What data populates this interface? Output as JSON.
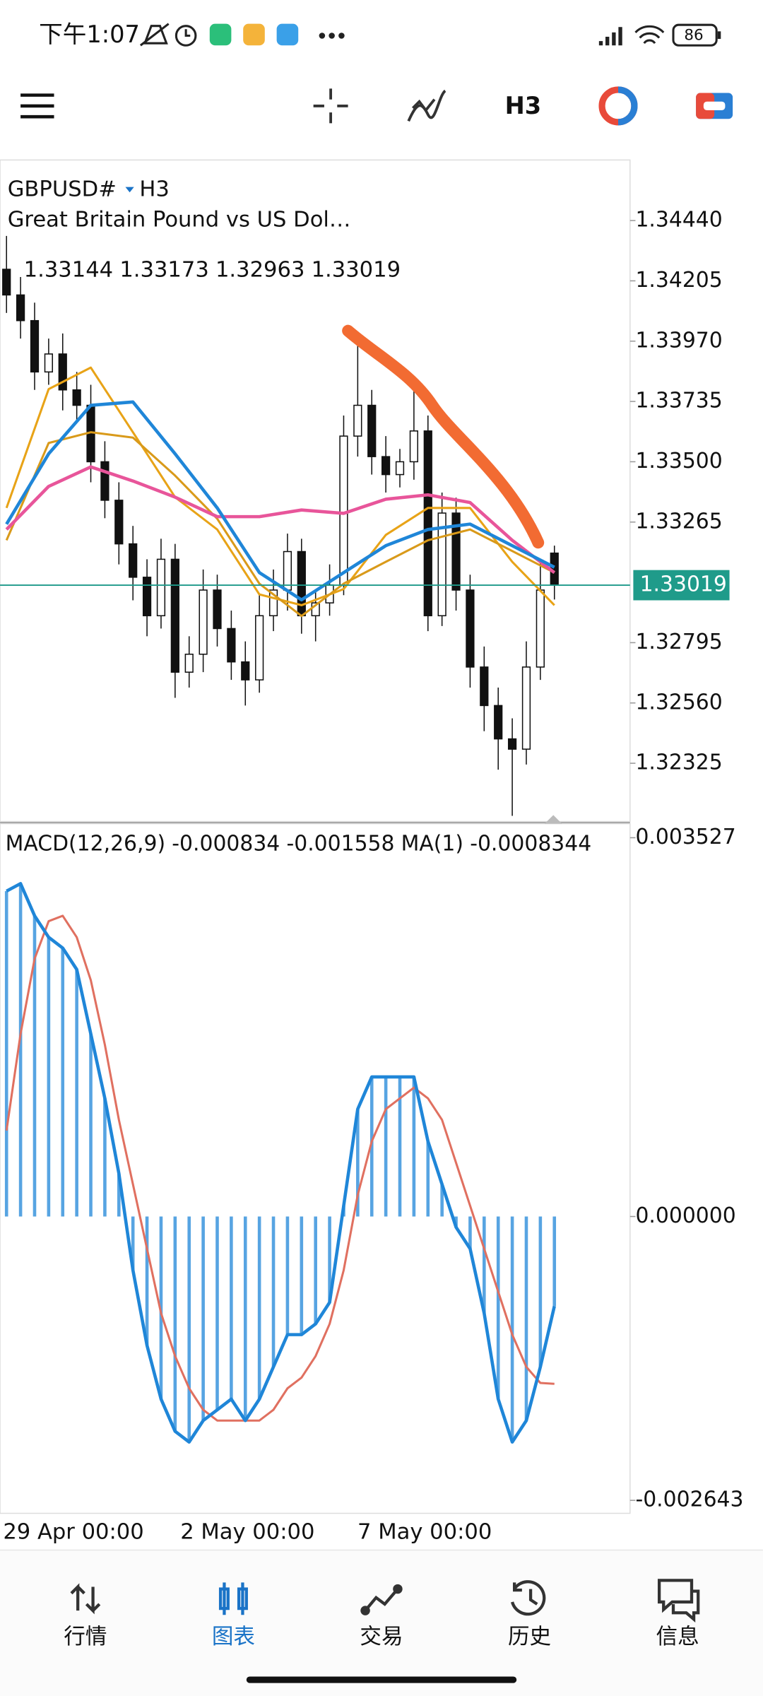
{
  "status_bar": {
    "time": "下午1:07",
    "battery": "86"
  },
  "toolbar": {
    "timeframe": "H3"
  },
  "chart": {
    "type": "candlestick",
    "symbol": "GBPUSD#",
    "timeframe": "H3",
    "description": "Great Britain Pound vs US Dol…",
    "ohlc": [
      1.33144,
      1.33173,
      1.32963,
      1.33019
    ],
    "open": [
      1.3425,
      1.3415,
      1.3405,
      1.3385,
      1.3392,
      1.3378,
      1.3372,
      1.335,
      1.3335,
      1.3318,
      1.3305,
      1.329,
      1.3312,
      1.3268,
      1.3275,
      1.33,
      1.3285,
      1.3272,
      1.3265,
      1.329,
      1.33,
      1.3315,
      1.329,
      1.3295,
      1.3302,
      1.336,
      1.3372,
      1.3352,
      1.3345,
      1.335,
      1.3362,
      1.329,
      1.333,
      1.33,
      1.327,
      1.3255,
      1.3242,
      1.3238,
      1.327,
      1.33144
    ],
    "high": [
      1.3438,
      1.3422,
      1.3412,
      1.3398,
      1.34,
      1.3385,
      1.338,
      1.3358,
      1.3342,
      1.3325,
      1.3312,
      1.332,
      1.3318,
      1.3282,
      1.3308,
      1.3306,
      1.3292,
      1.328,
      1.3298,
      1.3308,
      1.3322,
      1.332,
      1.33,
      1.331,
      1.3368,
      1.3398,
      1.3378,
      1.336,
      1.3355,
      1.3378,
      1.3368,
      1.3338,
      1.3336,
      1.3306,
      1.3278,
      1.3262,
      1.325,
      1.328,
      1.3312,
      1.33173
    ],
    "low": [
      1.3408,
      1.3398,
      1.3378,
      1.338,
      1.337,
      1.3365,
      1.3342,
      1.3328,
      1.331,
      1.3296,
      1.3282,
      1.3285,
      1.3258,
      1.3262,
      1.3268,
      1.3278,
      1.3265,
      1.3255,
      1.326,
      1.3284,
      1.3292,
      1.3283,
      1.328,
      1.329,
      1.3298,
      1.3352,
      1.3345,
      1.3338,
      1.334,
      1.3343,
      1.3284,
      1.3286,
      1.3292,
      1.3262,
      1.3245,
      1.323,
      1.3212,
      1.3232,
      1.3265,
      1.32963
    ],
    "close": [
      1.3415,
      1.3405,
      1.3385,
      1.3392,
      1.3378,
      1.3372,
      1.335,
      1.3335,
      1.3318,
      1.3305,
      1.329,
      1.3312,
      1.3268,
      1.3275,
      1.33,
      1.3285,
      1.3272,
      1.3265,
      1.329,
      1.33,
      1.3315,
      1.329,
      1.3295,
      1.3302,
      1.336,
      1.3372,
      1.3352,
      1.3345,
      1.335,
      1.3362,
      1.329,
      1.333,
      1.33,
      1.327,
      1.3255,
      1.3242,
      1.3238,
      1.327,
      1.33,
      1.33019
    ],
    "ylim": [
      1.32098,
      1.34676
    ],
    "yticks": [
      {
        "value": 1.3444,
        "label": "1.34440"
      },
      1.34205,
      {
        "value": 1.3397,
        "label": "1.33970"
      },
      1.33735,
      {
        "value": 1.335,
        "label": "1.33500"
      },
      1.33265,
      1.32795,
      {
        "value": 1.3256,
        "label": "1.32560"
      },
      1.32325
    ],
    "current_price": 1.33019,
    "ma_index": [
      0,
      3,
      6,
      9,
      12,
      15,
      18,
      21,
      24,
      27,
      30,
      33,
      36,
      39
    ],
    "moving_averages": [
      {
        "color": "#e8a317",
        "values": [
          1.3332,
          1.33783,
          1.33867,
          1.33615,
          1.33362,
          1.33236,
          1.32983,
          1.32941,
          1.33004,
          1.33215,
          1.3332,
          1.3332,
          1.3311,
          1.32941
        ]
      },
      {
        "color": "#d99a1a",
        "values": [
          1.33194,
          1.33573,
          1.33615,
          1.33594,
          1.33446,
          1.33278,
          1.33025,
          1.32899,
          1.33025,
          1.3311,
          1.33194,
          1.33236,
          1.33152,
          1.33068
        ]
      },
      {
        "color": "#e8559a",
        "values": [
          1.33236,
          1.33404,
          1.3348,
          1.33425,
          1.33362,
          1.33286,
          1.33286,
          1.33312,
          1.33299,
          1.33354,
          1.33371,
          1.33341,
          1.33194,
          1.33068
        ]
      },
      {
        "color": "#1f86d8",
        "values": [
          1.33257,
          1.33531,
          1.3372,
          1.33733,
          1.33531,
          1.3332,
          1.33068,
          1.32962,
          1.33068,
          1.33173,
          1.33236,
          1.33257,
          1.33173,
          1.33089
        ]
      }
    ]
  },
  "macd": {
    "type": "macd",
    "name": "MACD(12,26,9)",
    "macd_value": -0.000834,
    "signal_value": -0.001558,
    "ma_name": "MA(1)",
    "ma_value": -0.0008344,
    "histogram": [
      0.00303,
      0.0031,
      0.0028,
      0.0026,
      0.0025,
      0.0023,
      0.0017,
      0.0011,
      0.0004,
      -0.0005,
      -0.0012,
      -0.0017,
      -0.002,
      -0.0021,
      -0.0019,
      -0.0018,
      -0.0017,
      -0.0019,
      -0.0017,
      -0.0014,
      -0.0011,
      -0.0011,
      -0.001,
      -0.0008,
      0.0001,
      0.001,
      0.0013,
      0.0013,
      0.0013,
      0.0013,
      0.0007,
      0.0003,
      -0.0001,
      -0.0003,
      -0.0009,
      -0.0017,
      -0.0021,
      -0.0019,
      -0.0014,
      -0.000834
    ],
    "signal": [
      0.0008,
      0.0017,
      0.0024,
      0.00275,
      0.0028,
      0.0026,
      0.0022,
      0.0016,
      0.0009,
      0.0003,
      -0.0003,
      -0.0009,
      -0.0013,
      -0.0016,
      -0.0018,
      -0.0019,
      -0.0019,
      -0.0019,
      -0.0019,
      -0.0018,
      -0.0016,
      -0.0015,
      -0.0013,
      -0.001,
      -0.0005,
      0.0002,
      0.0007,
      0.001,
      0.0011,
      0.0012,
      0.0011,
      0.0009,
      0.0005,
      0.0001,
      -0.0003,
      -0.0007,
      -0.0011,
      -0.0014,
      -0.00155,
      -0.001558
    ],
    "color": "#1f86d8",
    "signal_color": "#e07060",
    "ylim": [
      -0.002643,
      0.003527
    ],
    "yticks": [
      0.003527,
      {
        "value": 0,
        "label": "0.000000"
      },
      -0.002643
    ]
  },
  "time_labels": [
    "29 Apr 00:00",
    "2 May 00:00",
    "7 May 00:00"
  ],
  "nav": [
    {
      "label": "行情"
    },
    {
      "label": "图表"
    },
    {
      "label": "交易"
    },
    {
      "label": "历史"
    },
    {
      "label": "信息"
    }
  ]
}
